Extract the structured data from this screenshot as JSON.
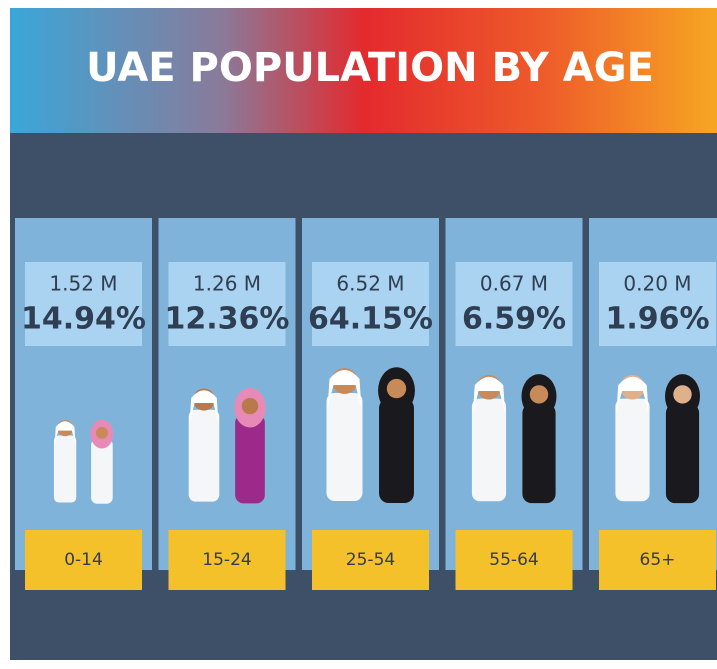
{
  "header": {
    "title": "UAE POPULATION BY AGE"
  },
  "groups": [
    {
      "population": "1.52 M",
      "percent": "14.94%",
      "age": "0-14"
    },
    {
      "population": "1.26 M",
      "percent": "12.36%",
      "age": "15-24"
    },
    {
      "population": "6.52 M",
      "percent": "64.15%",
      "age": "25-54"
    },
    {
      "population": "0.67 M",
      "percent": "6.59%",
      "age": "55-64"
    },
    {
      "population": "0.20 M",
      "percent": "1.96%",
      "age": "65+"
    }
  ]
}
